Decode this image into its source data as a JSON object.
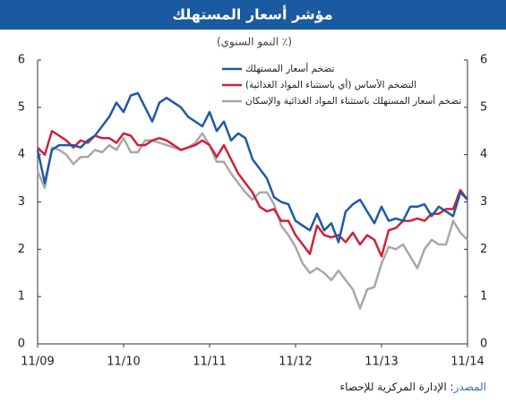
{
  "chart_data": {
    "type": "line",
    "title": "مؤشر أسعار المستهلك",
    "subtitle": "(٪ النمو السنوي)",
    "source_label": "المصدر",
    "source": ": الإدارة المركزية للإحصاء",
    "categories": [
      "11/09",
      null,
      null,
      null,
      null,
      null,
      null,
      null,
      null,
      null,
      null,
      null,
      "11/10",
      null,
      null,
      null,
      null,
      null,
      null,
      null,
      null,
      null,
      null,
      null,
      "11/11",
      null,
      null,
      null,
      null,
      null,
      null,
      null,
      null,
      null,
      null,
      null,
      "11/12",
      null,
      null,
      null,
      null,
      null,
      null,
      null,
      null,
      null,
      null,
      null,
      "11/13",
      null,
      null,
      null,
      null,
      null,
      null,
      null,
      null,
      null,
      null,
      null,
      "11/14"
    ],
    "series": [
      {
        "name": "تضخم أسعار المستهلك",
        "color": "#1f5aa6",
        "values": [
          4.1,
          3.4,
          4.1,
          4.2,
          4.2,
          4.2,
          4.15,
          4.3,
          4.4,
          4.6,
          4.8,
          5.1,
          4.9,
          5.25,
          5.3,
          5.0,
          4.7,
          5.1,
          5.2,
          5.1,
          5.0,
          4.8,
          4.7,
          4.6,
          4.9,
          4.5,
          4.7,
          4.3,
          4.45,
          4.35,
          3.9,
          3.7,
          3.5,
          3.1,
          3.0,
          2.95,
          2.6,
          2.5,
          2.4,
          2.75,
          2.4,
          2.55,
          2.15,
          2.8,
          2.95,
          3.05,
          2.8,
          2.55,
          2.9,
          2.6,
          2.65,
          2.6,
          2.9,
          2.9,
          2.95,
          2.7,
          2.9,
          2.8,
          2.7,
          3.2,
          3.05
        ]
      },
      {
        "name": "التضخم الأساس (أي باستثناء المواد الغذائية)",
        "color": "#d0213a",
        "values": [
          4.15,
          4.0,
          4.5,
          4.4,
          4.3,
          4.15,
          4.3,
          4.25,
          4.4,
          4.35,
          4.35,
          4.25,
          4.45,
          4.4,
          4.2,
          4.2,
          4.3,
          4.35,
          4.3,
          4.2,
          4.1,
          4.15,
          4.2,
          4.3,
          4.2,
          3.95,
          4.2,
          3.9,
          3.6,
          3.4,
          3.2,
          2.9,
          2.8,
          2.85,
          2.6,
          2.6,
          2.3,
          2.1,
          1.9,
          2.5,
          2.3,
          2.25,
          2.3,
          2.15,
          2.35,
          2.1,
          2.3,
          2.2,
          1.85,
          2.4,
          2.45,
          2.6,
          2.6,
          2.65,
          2.6,
          2.75,
          2.75,
          2.85,
          2.85,
          3.25,
          3.05
        ]
      },
      {
        "name": "تضخم أسعار المستهلك باستثناء المواد الغذائية والإسكان",
        "color": "#a8a8a8",
        "values": [
          3.65,
          3.3,
          4.15,
          4.1,
          4.0,
          3.8,
          3.95,
          3.95,
          4.1,
          4.05,
          4.2,
          4.1,
          4.35,
          4.05,
          4.05,
          4.3,
          4.3,
          4.25,
          4.2,
          4.15,
          4.1,
          4.15,
          4.25,
          4.45,
          4.2,
          3.85,
          3.85,
          3.6,
          3.4,
          3.2,
          3.05,
          3.2,
          3.2,
          2.95,
          2.5,
          2.3,
          2.05,
          1.7,
          1.5,
          1.6,
          1.5,
          1.35,
          1.55,
          1.35,
          1.15,
          0.75,
          1.15,
          1.2,
          1.7,
          2.05,
          2.0,
          2.1,
          1.85,
          1.6,
          2.0,
          2.2,
          2.1,
          2.1,
          2.6,
          2.35,
          2.2
        ]
      }
    ],
    "ylim": [
      0,
      6
    ],
    "yticks": [
      0,
      1,
      2,
      3,
      4,
      5,
      6
    ],
    "y2lim": [
      0,
      6
    ],
    "y2ticks": [
      0,
      1,
      2,
      3,
      4,
      5,
      6
    ]
  }
}
